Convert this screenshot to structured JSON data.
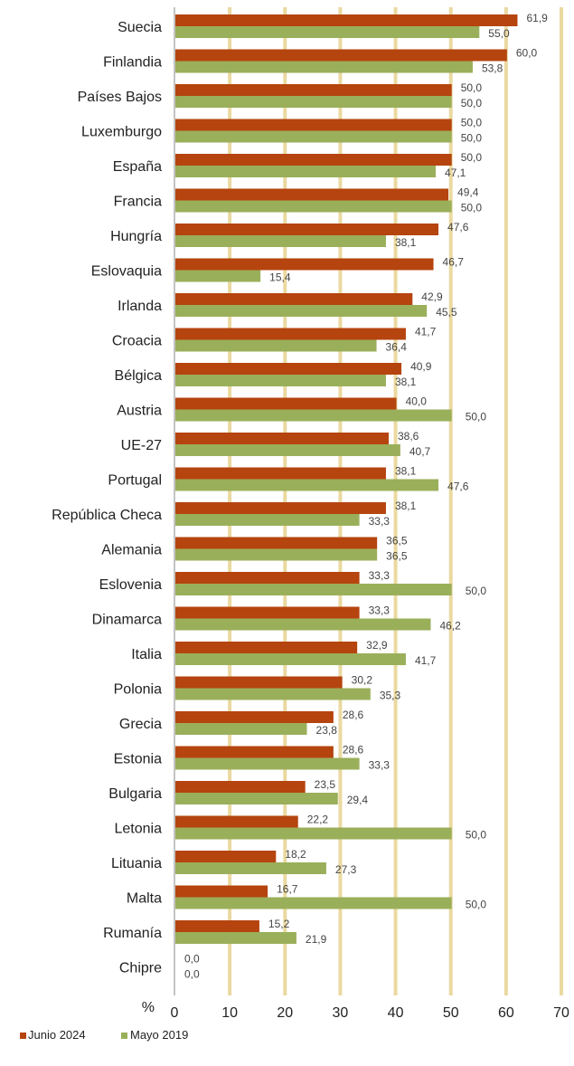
{
  "chart_data": {
    "type": "bar",
    "orientation": "horizontal",
    "categories": [
      "Suecia",
      "Finlandia",
      "Países Bajos",
      "Luxemburgo",
      "España",
      "Francia",
      "Hungría",
      "Eslovaquia",
      "Irlanda",
      "Croacia",
      "Bélgica",
      "Austria",
      "UE-27",
      "Portugal",
      "República Checa",
      "Alemania",
      "Eslovenia",
      "Dinamarca",
      "Italia",
      "Polonia",
      "Grecia",
      "Estonia",
      "Bulgaria",
      "Letonia",
      "Lituania",
      "Malta",
      "Rumanía",
      "Chipre"
    ],
    "series": [
      {
        "name": "Junio 2024",
        "color": "#b5440f",
        "values": [
          61.9,
          60.0,
          50.0,
          50.0,
          50.0,
          49.4,
          47.6,
          46.7,
          42.9,
          41.7,
          40.9,
          40.0,
          38.6,
          38.1,
          38.1,
          36.5,
          33.3,
          33.3,
          32.9,
          30.2,
          28.6,
          28.6,
          23.5,
          22.2,
          18.2,
          16.7,
          15.2,
          0.0
        ],
        "labels": [
          "61,9",
          "60,0",
          "50,0",
          "50,0",
          "50,0",
          "49,4",
          "47,6",
          "46,7",
          "42,9",
          "41,7",
          "40,9",
          "40,0",
          "38,6",
          "38,1",
          "38,1",
          "36,5",
          "33,3",
          "33,3",
          "32,9",
          "30,2",
          "28,6",
          "28,6",
          "23,5",
          "22,2",
          "18,2",
          "16,7",
          "15,2",
          "0,0"
        ]
      },
      {
        "name": "Mayo 2019",
        "color": "#9aaf5a",
        "values": [
          55.0,
          53.8,
          50.0,
          50.0,
          47.1,
          50.0,
          38.1,
          15.4,
          45.5,
          36.4,
          38.1,
          50.0,
          40.7,
          47.6,
          33.3,
          36.5,
          50.0,
          46.2,
          41.7,
          35.3,
          23.8,
          33.3,
          29.4,
          50.0,
          27.3,
          50.0,
          21.9,
          0.0
        ],
        "labels": [
          "55,0",
          "53,8",
          "50,0",
          "50,0",
          "47,1",
          "50,0",
          "38,1",
          "15,4",
          "45,5",
          "36,4",
          "38,1",
          "50,0",
          "40,7",
          "47,6",
          "33,3",
          "36,5",
          "50,0",
          "46,2",
          "41,7",
          "35,3",
          "23,8",
          "33,3",
          "29,4",
          "50,0",
          "27,3",
          "50,0",
          "21,9",
          "0,0"
        ]
      }
    ],
    "xlim": [
      0,
      70
    ],
    "ticks": [
      "0",
      "10",
      "20",
      "30",
      "40",
      "50",
      "60",
      "70"
    ],
    "unit_label": "%",
    "gridline_color": "#ead9a0",
    "legend_position": "bottom-left",
    "grid": true
  }
}
